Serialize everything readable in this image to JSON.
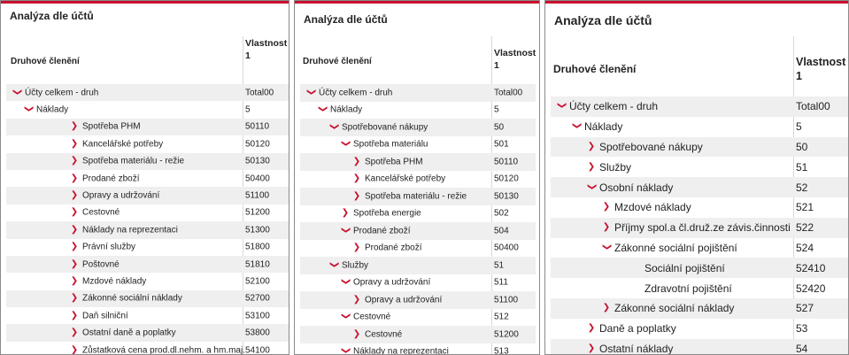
{
  "panels": [
    {
      "id": "p1",
      "title": "Analýza dle účtů",
      "header_left": "Druhové členění",
      "header_right_line1": "Vlastnost",
      "header_right_line2": "1",
      "indent_unit": 13,
      "rows": [
        {
          "label": "Účty celkem - druh",
          "value": "Total00",
          "level": 0,
          "state": "expanded"
        },
        {
          "label": "Náklady",
          "value": "5",
          "level": 1,
          "state": "expanded"
        },
        {
          "label": "Spotřeba PHM",
          "value": "50110",
          "level": 5,
          "state": "collapsed"
        },
        {
          "label": "Kancelářské potřeby",
          "value": "50120",
          "level": 5,
          "state": "collapsed"
        },
        {
          "label": "Spotřeba materiálu - režie",
          "value": "50130",
          "level": 5,
          "state": "collapsed"
        },
        {
          "label": "Prodané zboží",
          "value": "50400",
          "level": 5,
          "state": "collapsed"
        },
        {
          "label": "Opravy a udržování",
          "value": "51100",
          "level": 5,
          "state": "collapsed"
        },
        {
          "label": "Cestovné",
          "value": "51200",
          "level": 5,
          "state": "collapsed"
        },
        {
          "label": "Náklady na reprezentaci",
          "value": "51300",
          "level": 5,
          "state": "collapsed"
        },
        {
          "label": "Právní služby",
          "value": "51800",
          "level": 5,
          "state": "collapsed"
        },
        {
          "label": "Poštovné",
          "value": "51810",
          "level": 5,
          "state": "collapsed"
        },
        {
          "label": "Mzdové náklady",
          "value": "52100",
          "level": 5,
          "state": "collapsed"
        },
        {
          "label": "Zákonné sociální náklady",
          "value": "52700",
          "level": 5,
          "state": "collapsed"
        },
        {
          "label": "Daň silniční",
          "value": "53100",
          "level": 5,
          "state": "collapsed"
        },
        {
          "label": "Ostatní daně a poplatky",
          "value": "53800",
          "level": 5,
          "state": "collapsed"
        },
        {
          "label": "Zůstatková cena prod.dl.nehm. a hm.maj.",
          "value": "54100",
          "level": 5,
          "state": "collapsed"
        }
      ]
    },
    {
      "id": "p2",
      "title": "Analýza dle účtů",
      "header_left": "Druhové členění",
      "header_right_line1": "Vlastnost",
      "header_right_line2": "1",
      "indent_unit": 13,
      "rows": [
        {
          "label": "Účty celkem - druh",
          "value": "Total00",
          "level": 0,
          "state": "expanded"
        },
        {
          "label": "Náklady",
          "value": "5",
          "level": 1,
          "state": "expanded"
        },
        {
          "label": "Spotřebované nákupy",
          "value": "50",
          "level": 2,
          "state": "expanded"
        },
        {
          "label": "Spotřeba materiálu",
          "value": "501",
          "level": 3,
          "state": "expanded"
        },
        {
          "label": "Spotřeba PHM",
          "value": "50110",
          "level": 4,
          "state": "collapsed"
        },
        {
          "label": "Kancelářské potřeby",
          "value": "50120",
          "level": 4,
          "state": "collapsed"
        },
        {
          "label": "Spotřeba materiálu - režie",
          "value": "50130",
          "level": 4,
          "state": "collapsed"
        },
        {
          "label": "Spotřeba energie",
          "value": "502",
          "level": 3,
          "state": "collapsed"
        },
        {
          "label": "Prodané zboží",
          "value": "504",
          "level": 3,
          "state": "expanded"
        },
        {
          "label": "Prodané zboží",
          "value": "50400",
          "level": 4,
          "state": "collapsed"
        },
        {
          "label": "Služby",
          "value": "51",
          "level": 2,
          "state": "expanded"
        },
        {
          "label": "Opravy a udržování",
          "value": "511",
          "level": 3,
          "state": "expanded"
        },
        {
          "label": "Opravy a udržování",
          "value": "51100",
          "level": 4,
          "state": "collapsed"
        },
        {
          "label": "Cestovné",
          "value": "512",
          "level": 3,
          "state": "expanded"
        },
        {
          "label": "Cestovné",
          "value": "51200",
          "level": 4,
          "state": "collapsed"
        },
        {
          "label": "Náklady na reprezentaci",
          "value": "513",
          "level": 3,
          "state": "expanded"
        }
      ]
    },
    {
      "id": "p3",
      "title": "Analýza dle účtů",
      "header_left": "Druhové členění",
      "header_right_line1": "Vlastnost",
      "header_right_line2": "1",
      "indent_unit": 17,
      "rows": [
        {
          "label": "Účty celkem - druh",
          "value": "Total00",
          "level": 0,
          "state": "expanded"
        },
        {
          "label": "Náklady",
          "value": "5",
          "level": 1,
          "state": "expanded"
        },
        {
          "label": "Spotřebované nákupy",
          "value": "50",
          "level": 2,
          "state": "collapsed"
        },
        {
          "label": "Služby",
          "value": "51",
          "level": 2,
          "state": "collapsed"
        },
        {
          "label": "Osobní náklady",
          "value": "52",
          "level": 2,
          "state": "expanded"
        },
        {
          "label": "Mzdové náklady",
          "value": "521",
          "level": 3,
          "state": "collapsed"
        },
        {
          "label": "Příjmy spol.a čl.druž.ze závis.činnosti",
          "value": "522",
          "level": 3,
          "state": "collapsed"
        },
        {
          "label": "Zákonné sociální pojištění",
          "value": "524",
          "level": 3,
          "state": "expanded"
        },
        {
          "label": "Sociální pojištění",
          "value": "52410",
          "level": 5,
          "state": "leaf"
        },
        {
          "label": "Zdravotní pojištění",
          "value": "52420",
          "level": 5,
          "state": "leaf"
        },
        {
          "label": "Zákonné sociální náklady",
          "value": "527",
          "level": 3,
          "state": "collapsed"
        },
        {
          "label": "Daně a poplatky",
          "value": "53",
          "level": 2,
          "state": "collapsed"
        },
        {
          "label": "Ostatní náklady",
          "value": "54",
          "level": 2,
          "state": "collapsed"
        }
      ]
    }
  ]
}
